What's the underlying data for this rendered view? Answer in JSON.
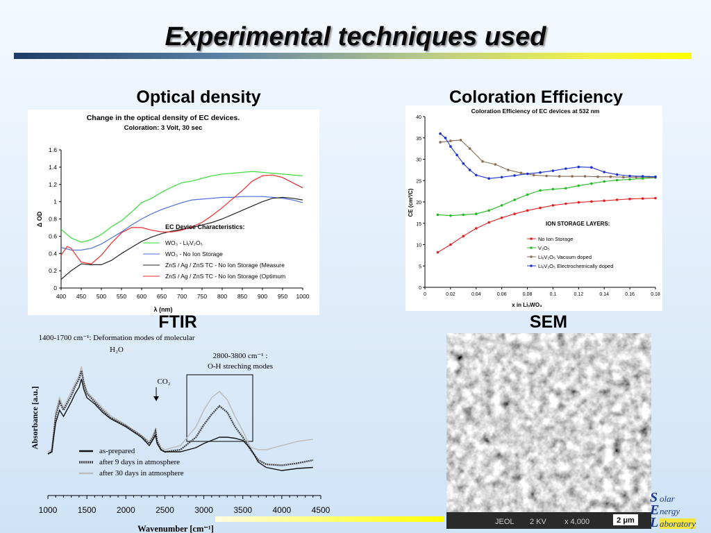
{
  "slide": {
    "title": "Experimental techniques used",
    "sections": {
      "optical_density": "Optical density",
      "coloration_efficiency": "Coloration Efficiency",
      "ftir": "FTIR",
      "sem": "SEM"
    }
  },
  "optical_density_chart": {
    "title_line1": "Change in the optical density of EC devices.",
    "title_line2": "Coloration: 3 Volt, 30 sec",
    "xlabel": "λ (nm)",
    "ylabel": "Δ OD",
    "x_ticks": [
      "400",
      "450",
      "500",
      "550",
      "600",
      "650",
      "700",
      "750",
      "800",
      "850",
      "900",
      "950",
      "1000"
    ],
    "y_ticks": [
      "0",
      "0.2",
      "0.4",
      "0.6",
      "0.8",
      "1",
      "1.2",
      "1.4",
      "1.6"
    ],
    "legend_title": "EC Device Characteristics:",
    "legend": [
      {
        "label": "WO₃ - LiᵧV₂O₅",
        "color": "#33dd33"
      },
      {
        "label": "WO₃ - No Ion Storage",
        "color": "#4a6ee0"
      },
      {
        "label": "ZnS / Ag / ZnS  TC  - No Ion Storage  (Measure",
        "color": "#222222"
      },
      {
        "label": "ZnS / Ag / ZnS  TC - No Ion Storage  (Optimum",
        "color": "#ee2a2a"
      }
    ]
  },
  "coloration_chart": {
    "title": "Coloration Efficiency of EC devices at 532 nm",
    "xlabel": "x in LiₓWO₃",
    "ylabel": "CE (cm²/C)",
    "x_ticks": [
      "0",
      "0.02",
      "0.04",
      "0.06",
      "0.08",
      "0.1",
      "0.12",
      "0.14",
      "0.16",
      "0.18"
    ],
    "y_ticks": [
      "0",
      "5",
      "10",
      "15",
      "20",
      "25",
      "30",
      "35",
      "40"
    ],
    "legend_title": "ION STORAGE LAYERS:",
    "legend": [
      {
        "label": "No Ion Storage",
        "color": "#e02020"
      },
      {
        "label": "V₂O₅",
        "color": "#22bb22"
      },
      {
        "label": "LiᵧV₂O₅ Vacuum doped",
        "color": "#8a6a50"
      },
      {
        "label": "LiᵧV₂O₅ Electrochemically doped",
        "color": "#1a2fd0"
      }
    ]
  },
  "ftir_chart": {
    "annotation_deformation": "1400-1700 cm⁻¹: Deformation  modes of molecular",
    "annotation_h2o": "H₂O",
    "annotation_oh_range": "2800-3800 cm⁻¹ :",
    "annotation_oh_modes": "O-H streching modes",
    "annotation_co2": "CO₂",
    "xlabel": "Wavenumber [cm⁻¹]",
    "ylabel": "Absorbance [a.u.]",
    "x_ticks": [
      "1000",
      "1500",
      "2000",
      "2500",
      "3000",
      "3500",
      "4000",
      "4500"
    ],
    "legend": [
      {
        "label": "as-prepared",
        "color": "#111111"
      },
      {
        "label": "after 9 days in atmosphere",
        "color": "#444444"
      },
      {
        "label": "after 30 days in atmosphere",
        "color": "#bdbdbd"
      }
    ]
  },
  "sem_image": {
    "info_microscope": "JEOL",
    "info_voltage": "2 KV",
    "info_magnification": "x  4,000",
    "scale_bar": "2 μm"
  },
  "logo": {
    "line1_cap": "S",
    "line1_rest": "olar",
    "line2_cap": "E",
    "line2_rest": "nergy",
    "line3_cap": "L",
    "line3_rest": "aboratory"
  },
  "chart_data": [
    {
      "type": "line",
      "title": "Change in the optical density of EC devices.",
      "subtitle": "Coloration: 3 Volt, 30 sec",
      "xlabel": "λ (nm)",
      "ylabel": "Δ OD",
      "xlim": [
        400,
        1000
      ],
      "ylim": [
        0,
        1.6
      ],
      "legend_position": "center-right",
      "series": [
        {
          "name": "WO₃ - LiᵧV₂O₅",
          "color": "#33dd33",
          "x": [
            400,
            425,
            450,
            475,
            500,
            525,
            550,
            575,
            600,
            625,
            650,
            675,
            700,
            725,
            750,
            775,
            800,
            825,
            850,
            875,
            900,
            925,
            950,
            975,
            1000
          ],
          "y": [
            0.68,
            0.58,
            0.53,
            0.56,
            0.62,
            0.71,
            0.78,
            0.88,
            0.99,
            1.04,
            1.11,
            1.17,
            1.22,
            1.24,
            1.27,
            1.3,
            1.32,
            1.33,
            1.34,
            1.35,
            1.34,
            1.33,
            1.32,
            1.31,
            1.3
          ]
        },
        {
          "name": "WO₃ - No Ion Storage",
          "color": "#4a6ee0",
          "x": [
            400,
            425,
            450,
            475,
            500,
            525,
            550,
            575,
            600,
            625,
            650,
            675,
            700,
            725,
            750,
            775,
            800,
            825,
            850,
            875,
            900,
            925,
            950,
            975,
            1000
          ],
          "y": [
            0.47,
            0.44,
            0.44,
            0.46,
            0.51,
            0.58,
            0.65,
            0.73,
            0.8,
            0.86,
            0.91,
            0.95,
            0.99,
            1.02,
            1.03,
            1.04,
            1.05,
            1.05,
            1.06,
            1.06,
            1.06,
            1.05,
            1.04,
            1.02,
            0.99
          ]
        },
        {
          "name": "ZnS / Ag / ZnS  TC  - No Ion Storage  (Measure",
          "color": "#222222",
          "x": [
            400,
            425,
            450,
            475,
            500,
            525,
            550,
            575,
            600,
            625,
            650,
            675,
            700,
            725,
            750,
            775,
            800,
            825,
            850,
            875,
            900,
            925,
            950,
            975,
            1000
          ],
          "y": [
            0.1,
            0.2,
            0.28,
            0.27,
            0.27,
            0.32,
            0.4,
            0.47,
            0.54,
            0.59,
            0.63,
            0.66,
            0.68,
            0.7,
            0.73,
            0.76,
            0.8,
            0.85,
            0.9,
            0.95,
            1.0,
            1.04,
            1.05,
            1.04,
            1.02
          ]
        },
        {
          "name": "ZnS / Ag / ZnS  TC - No Ion Storage  (Optimum",
          "color": "#ee2a2a",
          "x": [
            400,
            415,
            425,
            440,
            450,
            475,
            500,
            525,
            550,
            575,
            600,
            625,
            650,
            675,
            700,
            725,
            750,
            775,
            800,
            825,
            850,
            875,
            900,
            925,
            950,
            975,
            1000
          ],
          "y": [
            0.38,
            0.48,
            0.46,
            0.36,
            0.3,
            0.28,
            0.38,
            0.52,
            0.64,
            0.7,
            0.7,
            0.67,
            0.65,
            0.65,
            0.67,
            0.71,
            0.76,
            0.84,
            0.93,
            1.03,
            1.13,
            1.24,
            1.3,
            1.31,
            1.28,
            1.22,
            1.16
          ]
        }
      ]
    },
    {
      "type": "scatter",
      "title": "Coloration Efficiency of EC devices at 532 nm",
      "xlabel": "x in LiₓWO₃",
      "ylabel": "CE (cm²/C)",
      "xlim": [
        0,
        0.18
      ],
      "ylim": [
        0,
        40
      ],
      "legend_position": "center",
      "series": [
        {
          "name": "No Ion Storage",
          "color": "#e02020",
          "x": [
            0.01,
            0.02,
            0.03,
            0.04,
            0.05,
            0.06,
            0.07,
            0.08,
            0.09,
            0.1,
            0.11,
            0.12,
            0.13,
            0.14,
            0.15,
            0.16,
            0.17,
            0.18
          ],
          "y": [
            8.2,
            10.0,
            12.0,
            13.8,
            15.2,
            16.3,
            17.2,
            18.0,
            18.6,
            19.2,
            19.6,
            19.9,
            20.1,
            20.3,
            20.5,
            20.7,
            20.8,
            20.9
          ]
        },
        {
          "name": "V₂O₅",
          "color": "#22bb22",
          "x": [
            0.01,
            0.02,
            0.03,
            0.04,
            0.05,
            0.06,
            0.07,
            0.08,
            0.09,
            0.1,
            0.11,
            0.12,
            0.13,
            0.14,
            0.15,
            0.16,
            0.17,
            0.18
          ],
          "y": [
            17.0,
            16.8,
            17.0,
            17.2,
            18.0,
            19.2,
            20.5,
            21.7,
            22.7,
            23.0,
            23.2,
            23.8,
            24.3,
            24.8,
            25.1,
            25.3,
            25.5,
            25.7
          ]
        },
        {
          "name": "LiᵧV₂O₅ Vacuum doped",
          "color": "#8a6a50",
          "x": [
            0.012,
            0.02,
            0.028,
            0.035,
            0.045,
            0.055,
            0.065,
            0.075,
            0.085,
            0.095,
            0.105,
            0.115,
            0.125,
            0.135,
            0.145,
            0.155,
            0.165,
            0.175,
            0.18
          ],
          "y": [
            34.0,
            34.3,
            34.5,
            32.5,
            29.5,
            28.8,
            27.5,
            26.8,
            26.3,
            26.1,
            26.0,
            26.0,
            26.0,
            25.9,
            25.9,
            25.8,
            25.8,
            25.8,
            25.8
          ]
        },
        {
          "name": "LiᵧV₂O₅ Electrochemically doped",
          "color": "#1a2fd0",
          "x": [
            0.012,
            0.016,
            0.02,
            0.025,
            0.03,
            0.035,
            0.04,
            0.05,
            0.06,
            0.07,
            0.08,
            0.09,
            0.1,
            0.11,
            0.12,
            0.13,
            0.14,
            0.15,
            0.16,
            0.17,
            0.18
          ],
          "y": [
            36.0,
            35.0,
            33.0,
            31.0,
            29.0,
            27.5,
            26.3,
            25.5,
            25.8,
            26.2,
            26.6,
            26.9,
            27.3,
            27.8,
            28.2,
            28.1,
            27.0,
            26.4,
            26.1,
            26.0,
            25.9
          ]
        }
      ]
    },
    {
      "type": "line",
      "xlabel": "Wavenumber [cm⁻¹]",
      "ylabel": "Absorbance [a.u.]",
      "xlim": [
        1000,
        4500
      ],
      "legend_position": "bottom-left",
      "series": [
        {
          "name": "as-prepared",
          "color": "#111111",
          "x": [
            1000,
            1050,
            1100,
            1150,
            1200,
            1300,
            1350,
            1400,
            1430,
            1460,
            1500,
            1600,
            1700,
            1800,
            2000,
            2200,
            2300,
            2350,
            2380,
            2400,
            2450,
            2500,
            2700,
            2900,
            3000,
            3100,
            3200,
            3300,
            3400,
            3500,
            3600,
            3700,
            3800,
            4000,
            4200,
            4400
          ],
          "y": [
            0.2,
            0.22,
            0.5,
            0.62,
            0.56,
            0.7,
            0.78,
            0.84,
            0.92,
            0.82,
            0.74,
            0.68,
            0.6,
            0.54,
            0.46,
            0.36,
            0.28,
            0.34,
            0.38,
            0.3,
            0.24,
            0.22,
            0.22,
            0.26,
            0.3,
            0.33,
            0.36,
            0.36,
            0.35,
            0.33,
            0.25,
            0.12,
            0.07,
            0.04,
            0.06,
            0.07
          ]
        },
        {
          "name": "after 9 days in atmosphere",
          "color": "#444444",
          "x": [
            1000,
            1050,
            1100,
            1150,
            1200,
            1300,
            1350,
            1400,
            1430,
            1460,
            1500,
            1600,
            1700,
            1800,
            2000,
            2200,
            2300,
            2350,
            2380,
            2400,
            2450,
            2500,
            2700,
            2900,
            3000,
            3100,
            3200,
            3300,
            3400,
            3500,
            3600,
            3700,
            3800,
            4000,
            4200,
            4400
          ],
          "y": [
            0.2,
            0.22,
            0.56,
            0.7,
            0.62,
            0.76,
            0.85,
            0.92,
            1.0,
            0.88,
            0.78,
            0.7,
            0.62,
            0.55,
            0.47,
            0.37,
            0.3,
            0.36,
            0.42,
            0.32,
            0.24,
            0.22,
            0.24,
            0.36,
            0.48,
            0.58,
            0.66,
            0.6,
            0.46,
            0.36,
            0.24,
            0.14,
            0.1,
            0.09,
            0.11,
            0.14
          ]
        },
        {
          "name": "after 30 days in atmosphere",
          "color": "#bdbdbd",
          "x": [
            1000,
            1050,
            1100,
            1150,
            1200,
            1300,
            1350,
            1400,
            1430,
            1460,
            1500,
            1600,
            1700,
            1800,
            2000,
            2200,
            2300,
            2350,
            2380,
            2400,
            2450,
            2500,
            2700,
            2900,
            3000,
            3100,
            3200,
            3300,
            3400,
            3500,
            3600,
            3700,
            3800,
            4000,
            4200,
            4400
          ],
          "y": [
            0.22,
            0.24,
            0.6,
            0.74,
            0.64,
            0.8,
            0.88,
            0.95,
            1.04,
            0.9,
            0.8,
            0.72,
            0.64,
            0.57,
            0.48,
            0.38,
            0.32,
            0.38,
            0.44,
            0.34,
            0.26,
            0.24,
            0.28,
            0.46,
            0.62,
            0.74,
            0.8,
            0.72,
            0.56,
            0.42,
            0.26,
            0.24,
            0.24,
            0.28,
            0.32,
            0.34
          ]
        }
      ]
    }
  ]
}
